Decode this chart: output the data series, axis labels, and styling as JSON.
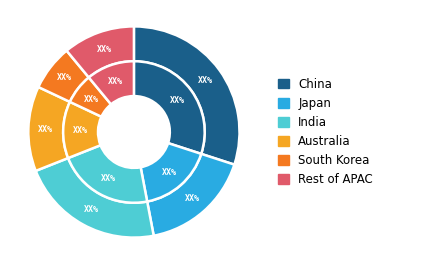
{
  "labels": [
    "China",
    "Japan",
    "India",
    "Australia",
    "South Korea",
    "Rest of APAC"
  ],
  "outer_values": [
    30,
    17,
    22,
    13,
    7,
    11
  ],
  "inner_values": [
    30,
    17,
    22,
    13,
    7,
    11
  ],
  "colors": [
    "#1a5f8a",
    "#29abe2",
    "#4ecdd4",
    "#f5a623",
    "#f47920",
    "#e05a6a"
  ],
  "label_text": "XX%",
  "background_color": "#ffffff",
  "legend_fontsize": 8.5,
  "text_color": "#ffffff"
}
